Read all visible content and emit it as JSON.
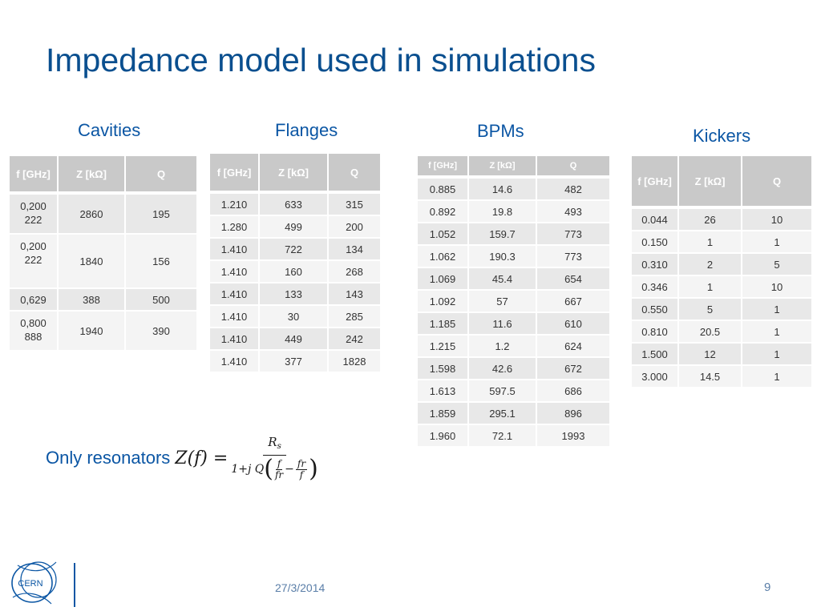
{
  "title": "Impedance model used in simulations",
  "cavities": {
    "title": "Cavities",
    "headers": [
      "f [GHz]",
      "Z [kΩ]",
      "Q"
    ],
    "rows": [
      [
        "0,200 222",
        "2860",
        "195"
      ],
      [
        "0,200 222",
        "1840",
        "156"
      ],
      [
        "0,629",
        "388",
        "500"
      ],
      [
        "0,800 888",
        "1940",
        "390"
      ]
    ]
  },
  "flanges": {
    "title": "Flanges",
    "headers": [
      "f [GHz]",
      "Z [kΩ]",
      "Q"
    ],
    "rows": [
      [
        "1.210",
        "633",
        "315"
      ],
      [
        "1.280",
        "499",
        "200"
      ],
      [
        "1.410",
        "722",
        "134"
      ],
      [
        "1.410",
        "160",
        "268"
      ],
      [
        "1.410",
        "133",
        "143"
      ],
      [
        "1.410",
        "30",
        "285"
      ],
      [
        "1.410",
        "449",
        "242"
      ],
      [
        "1.410",
        "377",
        "1828"
      ]
    ]
  },
  "bpms": {
    "title": "BPMs",
    "headers": [
      "f [GHz]",
      "Z [kΩ]",
      "Q"
    ],
    "rows": [
      [
        "0.885",
        "14.6",
        "482"
      ],
      [
        "0.892",
        "19.8",
        "493"
      ],
      [
        "1.052",
        "159.7",
        "773"
      ],
      [
        "1.062",
        "190.3",
        "773"
      ],
      [
        "1.069",
        "45.4",
        "654"
      ],
      [
        "1.092",
        "57",
        "667"
      ],
      [
        "1.185",
        "11.6",
        "610"
      ],
      [
        "1.215",
        "1.2",
        "624"
      ],
      [
        "1.598",
        "42.6",
        "672"
      ],
      [
        "1.613",
        "597.5",
        "686"
      ],
      [
        "1.859",
        "295.1",
        "896"
      ],
      [
        "1.960",
        "72.1",
        "1993"
      ]
    ]
  },
  "kickers": {
    "title": "Kickers",
    "headers": [
      "f [GHz]",
      "Z [kΩ]",
      "Q"
    ],
    "rows": [
      [
        "0.044",
        "26",
        "10"
      ],
      [
        "0.150",
        "1",
        "1"
      ],
      [
        "0.310",
        "2",
        "5"
      ],
      [
        "0.346",
        "1",
        "10"
      ],
      [
        "0.550",
        "5",
        "1"
      ],
      [
        "0.810",
        "20.5",
        "1"
      ],
      [
        "1.500",
        "12",
        "1"
      ],
      [
        "3.000",
        "14.5",
        "1"
      ]
    ]
  },
  "formula": {
    "label": "Only resonators",
    "lhs": "Z(f) =",
    "numerator": "R",
    "numerator_sub": "s",
    "den_prefix": "1+j Q",
    "f": "f",
    "fr": "fr",
    "minus": "−"
  },
  "footer": {
    "logo_text": "CERN",
    "date": "27/3/2014",
    "page_number": "9"
  }
}
